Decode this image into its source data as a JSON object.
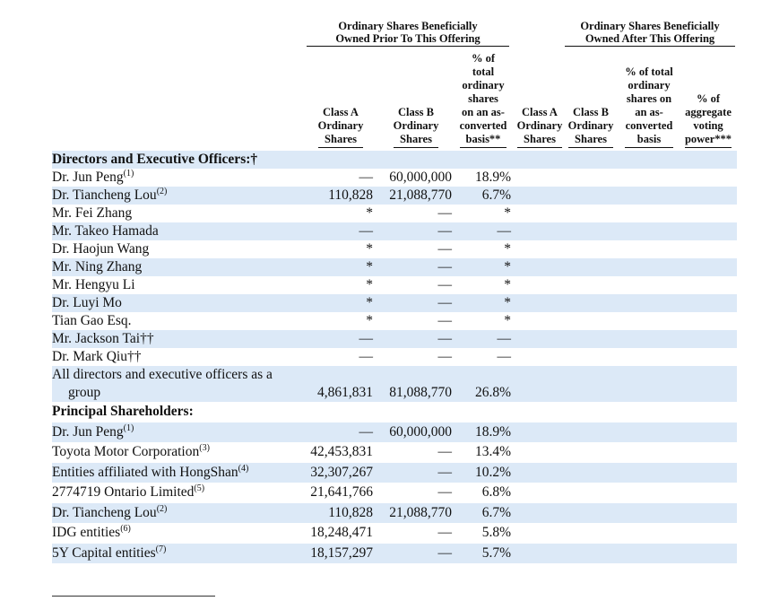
{
  "header": {
    "groups": [
      [
        "Ordinary Shares Beneficially",
        "Owned Prior To This Offering"
      ],
      [
        "Ordinary Shares Beneficially",
        "Owned After This Offering"
      ]
    ],
    "columns": [
      [
        "Class A",
        "Ordinary",
        "Shares"
      ],
      [
        "Class B",
        "Ordinary",
        "Shares"
      ],
      [
        "% of",
        "total",
        "ordinary",
        "shares",
        "on an as-",
        "converted",
        "basis**"
      ],
      [
        "Class A",
        "Ordinary",
        "Shares"
      ],
      [
        "Class B",
        "Ordinary",
        "Shares"
      ],
      [
        "% of total",
        "ordinary",
        "shares on",
        "an as-",
        "converted",
        "basis"
      ],
      [
        "% of",
        "aggregate",
        "voting",
        "power***"
      ]
    ]
  },
  "sections": [
    {
      "title": "Directors and Executive Officers:†",
      "rows": [
        {
          "name": "Dr. Jun Peng",
          "note": "(1)",
          "cells": [
            "—",
            "60,000,000",
            "18.9%"
          ]
        },
        {
          "name": "Dr. Tiancheng Lou",
          "note": "(2)",
          "cells": [
            "110,828",
            "21,088,770",
            "6.7%"
          ]
        },
        {
          "name": "Mr. Fei Zhang",
          "cells": [
            "*",
            "—",
            "*"
          ]
        },
        {
          "name": "Mr. Takeo Hamada",
          "cells": [
            "—",
            "—",
            "—"
          ]
        },
        {
          "name": "Dr. Haojun Wang",
          "cells": [
            "*",
            "—",
            "*"
          ]
        },
        {
          "name": "Mr. Ning Zhang",
          "cells": [
            "*",
            "—",
            "*"
          ]
        },
        {
          "name": "Mr. Hengyu Li",
          "cells": [
            "*",
            "—",
            "*"
          ]
        },
        {
          "name": "Dr. Luyi Mo",
          "cells": [
            "*",
            "—",
            "*"
          ]
        },
        {
          "name": "Tian Gao Esq.",
          "cells": [
            "*",
            "—",
            "*"
          ]
        },
        {
          "name": "Mr. Jackson Tai††",
          "cells": [
            "—",
            "—",
            "—"
          ]
        },
        {
          "name": "Dr. Mark Qiu††",
          "cells": [
            "—",
            "—",
            "—"
          ]
        },
        {
          "name": "All directors and executive officers as a group",
          "cells": [
            "4,861,831",
            "81,088,770",
            "26.8%"
          ]
        }
      ]
    },
    {
      "title": "Principal Shareholders:",
      "rows": [
        {
          "name": "Dr. Jun Peng",
          "note": "(1)",
          "cells": [
            "—",
            "60,000,000",
            "18.9%"
          ]
        },
        {
          "name": "Toyota Motor Corporation",
          "note": "(3)",
          "cells": [
            "42,453,831",
            "—",
            "13.4%"
          ]
        },
        {
          "name": "Entities affiliated with HongShan",
          "note": "(4)",
          "cells": [
            "32,307,267",
            "—",
            "10.2%"
          ]
        },
        {
          "name": "2774719 Ontario Limited",
          "note": "(5)",
          "cells": [
            "21,641,766",
            "—",
            "6.8%"
          ]
        },
        {
          "name": "Dr. Tiancheng Lou",
          "note": "(2)",
          "cells": [
            "110,828",
            "21,088,770",
            "6.7%"
          ]
        },
        {
          "name": "IDG entities",
          "note": "(6)",
          "cells": [
            "18,248,471",
            "—",
            "5.8%"
          ]
        },
        {
          "name": "5Y Capital entities",
          "note": "(7)",
          "cells": [
            "18,157,297",
            "—",
            "5.7%"
          ]
        }
      ]
    }
  ]
}
